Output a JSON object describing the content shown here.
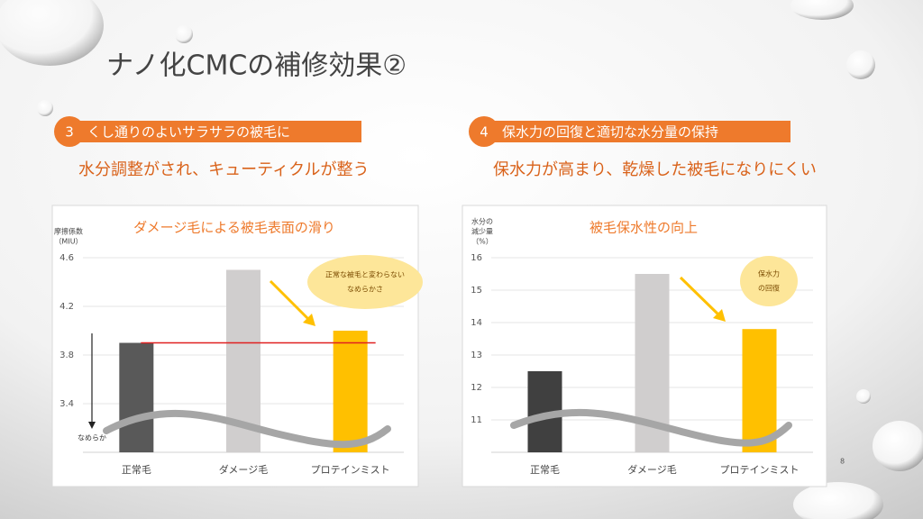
{
  "slide": {
    "title": "ナノ化CMCの補修効果②",
    "sections": [
      {
        "number": "3",
        "heading": "くし通りのよいサラサラの被毛に",
        "subheading": "水分調整がされ、キューティクルが整う"
      },
      {
        "number": "4",
        "heading": "保水力の回復と適切な水分量の保持",
        "subheading": "保水力が高まり、乾燥した被毛になりにくい"
      }
    ],
    "page_number": 8
  },
  "chart_data": [
    {
      "type": "bar",
      "title": "ダメージ毛による被毛表面の滑り",
      "y_label": [
        "摩擦係数",
        "（MIU）"
      ],
      "categories": [
        "正常毛",
        "ダメージ毛",
        "プロテインミスト"
      ],
      "values": [
        3.9,
        4.5,
        4.0
      ],
      "colors": [
        "#595959",
        "#d0cece",
        "#ffc000"
      ],
      "ylim": [
        3.0,
        4.6
      ],
      "yticks": [
        3.4,
        3.8,
        4.2,
        4.6
      ],
      "grid": true,
      "reference_line": {
        "value": 3.9,
        "color": "#e02020"
      },
      "annotation": [
        "正常な被毛と変わらない",
        "なめらかさ"
      ],
      "arrow_label": "なめらか"
    },
    {
      "type": "bar",
      "title": "被毛保水性の向上",
      "y_label": [
        "水分の",
        "減少量",
        "（%）"
      ],
      "categories": [
        "正常毛",
        "ダメージ毛",
        "プロテインミスト"
      ],
      "values": [
        12.5,
        15.5,
        13.8
      ],
      "colors": [
        "#404040",
        "#d0cece",
        "#ffc000"
      ],
      "ylim": [
        10,
        16
      ],
      "yticks": [
        11,
        12,
        13,
        14,
        15,
        16
      ],
      "grid": true,
      "annotation": [
        "保水力",
        "の回復"
      ]
    }
  ]
}
